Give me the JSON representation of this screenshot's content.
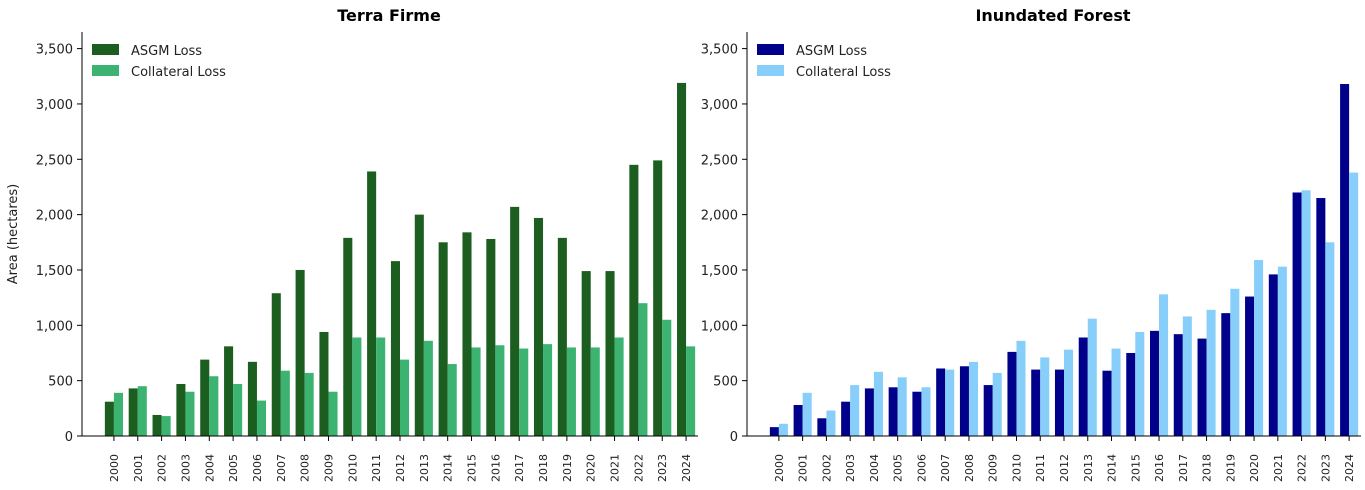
{
  "chart_data": [
    {
      "type": "bar",
      "title": "Terra Firme",
      "ylabel": "Area (hectares)",
      "xlabel": "",
      "ylim": [
        0,
        3650
      ],
      "yticks": [
        0,
        500,
        1000,
        1500,
        2000,
        2500,
        3000,
        3500
      ],
      "ytick_labels": [
        "0",
        "500",
        "1,000",
        "1,500",
        "2,000",
        "2,500",
        "3,000",
        "3,500"
      ],
      "legend_position": "top-left",
      "categories": [
        "2000",
        "2001",
        "2002",
        "2003",
        "2004",
        "2005",
        "2006",
        "2007",
        "2008",
        "2009",
        "2010",
        "2011",
        "2012",
        "2013",
        "2014",
        "2015",
        "2016",
        "2017",
        "2018",
        "2019",
        "2020",
        "2021",
        "2022",
        "2023",
        "2024"
      ],
      "series": [
        {
          "name": "ASGM Loss",
          "color": "#1b5e20",
          "values": [
            310,
            430,
            190,
            470,
            690,
            810,
            670,
            1290,
            1500,
            940,
            1790,
            2390,
            1580,
            2000,
            1750,
            1840,
            1780,
            2070,
            1970,
            1790,
            1490,
            1490,
            2450,
            2490,
            3190
          ]
        },
        {
          "name": "Collateral Loss",
          "color": "#3cb371",
          "values": [
            390,
            450,
            180,
            400,
            540,
            470,
            320,
            590,
            570,
            400,
            890,
            890,
            690,
            860,
            650,
            800,
            820,
            790,
            830,
            800,
            800,
            890,
            1200,
            1050,
            810
          ]
        }
      ]
    },
    {
      "type": "bar",
      "title": "Inundated Forest",
      "ylabel": "",
      "xlabel": "",
      "ylim": [
        0,
        3650
      ],
      "yticks": [
        0,
        500,
        1000,
        1500,
        2000,
        2500,
        3000,
        3500
      ],
      "ytick_labels": [
        "0",
        "500",
        "1,000",
        "1,500",
        "2,000",
        "2,500",
        "3,000",
        "3,500"
      ],
      "legend_position": "top-left",
      "categories": [
        "2000",
        "2001",
        "2002",
        "2003",
        "2004",
        "2005",
        "2006",
        "2007",
        "2008",
        "2009",
        "2010",
        "2011",
        "2012",
        "2013",
        "2014",
        "2015",
        "2016",
        "2017",
        "2018",
        "2019",
        "2020",
        "2021",
        "2022",
        "2023",
        "2024"
      ],
      "series": [
        {
          "name": "ASGM Loss",
          "color": "#00008b",
          "values": [
            80,
            280,
            160,
            310,
            430,
            440,
            400,
            610,
            630,
            460,
            760,
            600,
            600,
            890,
            590,
            750,
            950,
            920,
            880,
            1110,
            1260,
            1460,
            2200,
            2150,
            3180
          ]
        },
        {
          "name": "Collateral Loss",
          "color": "#87cefa",
          "values": [
            110,
            390,
            230,
            460,
            580,
            530,
            440,
            600,
            670,
            570,
            860,
            710,
            780,
            1060,
            790,
            940,
            1280,
            1080,
            1140,
            1330,
            1590,
            1530,
            2220,
            1750,
            2380
          ]
        }
      ]
    }
  ]
}
